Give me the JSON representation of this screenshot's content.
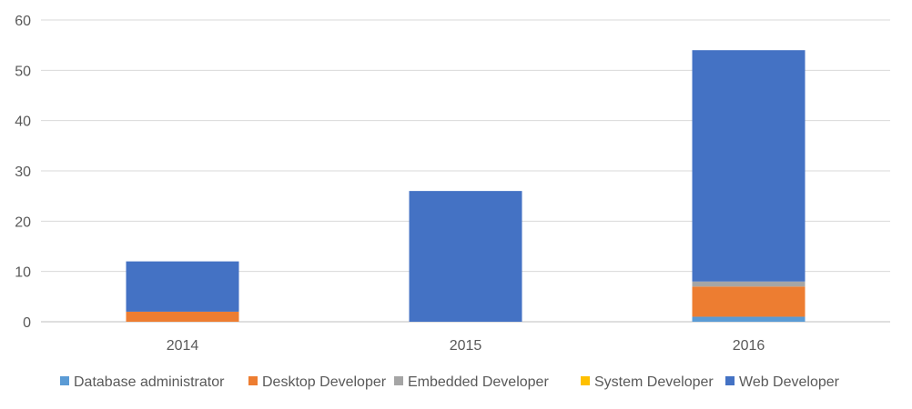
{
  "chart_data": {
    "type": "bar",
    "stacked": true,
    "categories": [
      "2014",
      "2015",
      "2016"
    ],
    "ylim": [
      0,
      60
    ],
    "yticks": [
      0,
      10,
      20,
      30,
      40,
      50,
      60
    ],
    "grid": true,
    "legend_position": "bottom",
    "series": [
      {
        "name": "Database administrator",
        "color": "#5B9BD5",
        "values": [
          0,
          0,
          1
        ]
      },
      {
        "name": "Desktop Developer",
        "color": "#ED7D31",
        "values": [
          2,
          0,
          6
        ]
      },
      {
        "name": "Embedded Developer",
        "color": "#A5A5A5",
        "values": [
          0,
          0,
          1
        ]
      },
      {
        "name": "System Developer",
        "color": "#FFC000",
        "values": [
          0,
          0,
          0
        ]
      },
      {
        "name": "Web Developer",
        "color": "#4472C4",
        "values": [
          10,
          26,
          46
        ]
      }
    ]
  }
}
